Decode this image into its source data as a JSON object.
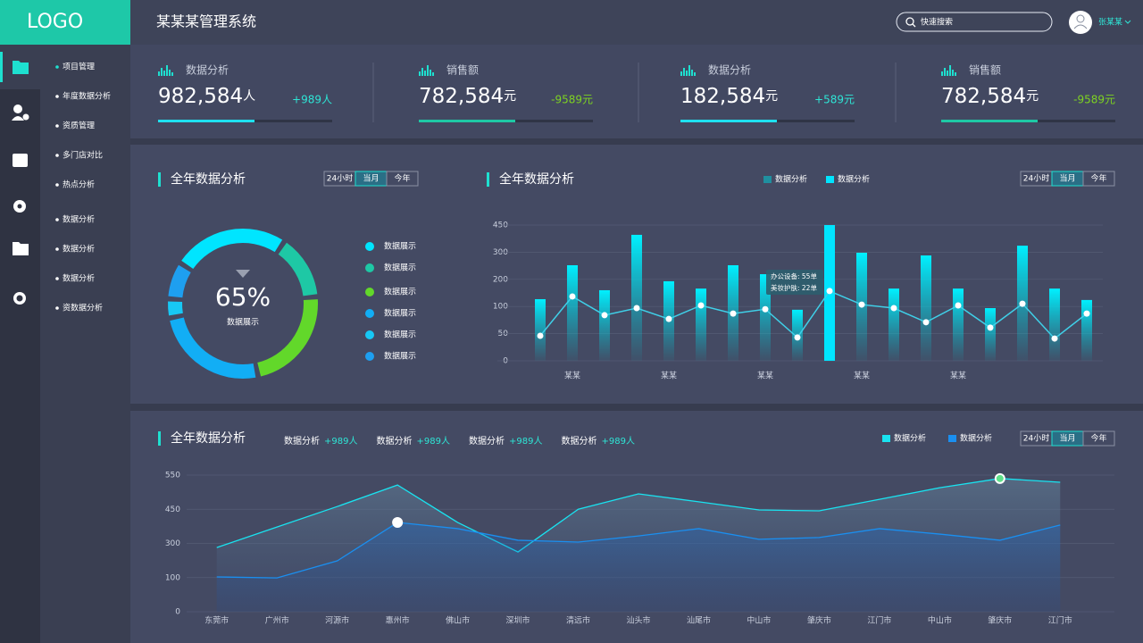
{
  "header": {
    "logo": "LOGO",
    "title": "某某某管理系统",
    "search_placeholder": "快速搜索",
    "user": "张某某"
  },
  "sidebar": {
    "menu": [
      "项目管理",
      "年度数据分析",
      "资质管理",
      "多门店对比",
      "热点分析",
      "数据分析",
      "数据分析",
      "数据分析",
      "资数据分析"
    ]
  },
  "stats": [
    {
      "label": "数据分析",
      "value": "982,584",
      "unit": "人",
      "change": "+989人",
      "color": "#2ee6d6"
    },
    {
      "label": "销售额",
      "value": "782,584",
      "unit": "元",
      "change": "-9589元",
      "color": "#7ed321"
    },
    {
      "label": "数据分析",
      "value": "182,584",
      "unit": "元",
      "change": "+589元",
      "color": "#2ee6d6"
    },
    {
      "label": "销售额",
      "value": "782,584",
      "unit": "元",
      "change": "-9589元",
      "color": "#7ed321"
    }
  ],
  "donut_panel": {
    "title": "全年数据分析",
    "tabs": [
      "24小时",
      "当月",
      "今年"
    ],
    "active_tab": 1,
    "chart_data": {
      "type": "donut",
      "center_label": "65%",
      "center_sublabel": "数据展示",
      "labels": [
        "数据展示",
        "数据展示",
        "数据展示",
        "数据展示",
        "数据展示",
        "数据展示"
      ],
      "values": [
        24,
        13,
        22,
        24,
        3,
        7
      ],
      "colors": [
        "#00e5ff",
        "#1ec8a5",
        "#62d82a",
        "#12aef5",
        "#17c8f5",
        "#1e9ff0"
      ]
    }
  },
  "bar_panel": {
    "title": "全年数据分析",
    "tabs": [
      "24小时",
      "当月",
      "今年"
    ],
    "active_tab": 1,
    "chart_data": {
      "type": "bar_line",
      "categories": [
        null,
        "某某",
        null,
        null,
        "某某",
        null,
        null,
        "某某",
        null,
        null,
        "某某",
        null,
        null,
        "某某",
        null,
        null,
        null,
        null
      ],
      "series": [
        {
          "name": "数据分析",
          "color": "#1f8f9f",
          "line_color": "#3fd0e8",
          "kind": "line",
          "values": [
            46,
            137,
            84,
            97,
            77,
            104,
            87,
            95,
            43,
            157,
            107,
            97,
            71,
            104,
            61,
            110,
            41,
            87
          ]
        },
        {
          "name": "数据分析",
          "color": "#00e5ff",
          "kind": "bar",
          "values": [
            127,
            252,
            160,
            396,
            193,
            166,
            252,
            219,
            94,
            450,
            298,
            166,
            288,
            166,
            97,
            336,
            166,
            124
          ]
        }
      ],
      "ylim": [
        0,
        450
      ],
      "yticks": [
        0,
        50,
        100,
        200,
        300,
        450
      ],
      "grid": true,
      "tooltip": [
        "办公设备: 55单",
        "美妆护肤: 22单"
      ],
      "tooltip_index": 8
    }
  },
  "area_panel": {
    "title": "全年数据分析",
    "summary": [
      {
        "label": "数据分析",
        "value": "+989人"
      },
      {
        "label": "数据分析",
        "value": "+989人"
      },
      {
        "label": "数据分析",
        "value": "+989人"
      },
      {
        "label": "数据分析",
        "value": "+989人"
      }
    ],
    "tabs": [
      "24小时",
      "当月",
      "今年"
    ],
    "active_tab": 1,
    "chart_data": {
      "type": "area",
      "categories": [
        "东莞市",
        "广州市",
        "河源市",
        "惠州市",
        "佛山市",
        "深圳市",
        "清远市",
        "汕头市",
        "汕尾市",
        "中山市",
        "肇庆市",
        "江门市",
        "中山市",
        "肇庆市",
        "江门市"
      ],
      "series": [
        {
          "name": "数据分析",
          "color": "#19e3f0",
          "values": [
            276,
            372,
            458,
            521,
            392,
            250,
            450,
            495,
            472,
            447,
            443,
            479,
            513,
            540,
            529
          ],
          "highlight_index": 13
        },
        {
          "name": "数据分析",
          "color": "#1a8ff0",
          "values": [
            104,
            99,
            198,
            392,
            365,
            314,
            306,
            333,
            365,
            318,
            326,
            365,
            341,
            314,
            381
          ],
          "highlight_index": 3
        }
      ],
      "ylim": [
        0,
        550
      ],
      "yticks": [
        0,
        100,
        300,
        450,
        550
      ],
      "grid": true
    }
  }
}
